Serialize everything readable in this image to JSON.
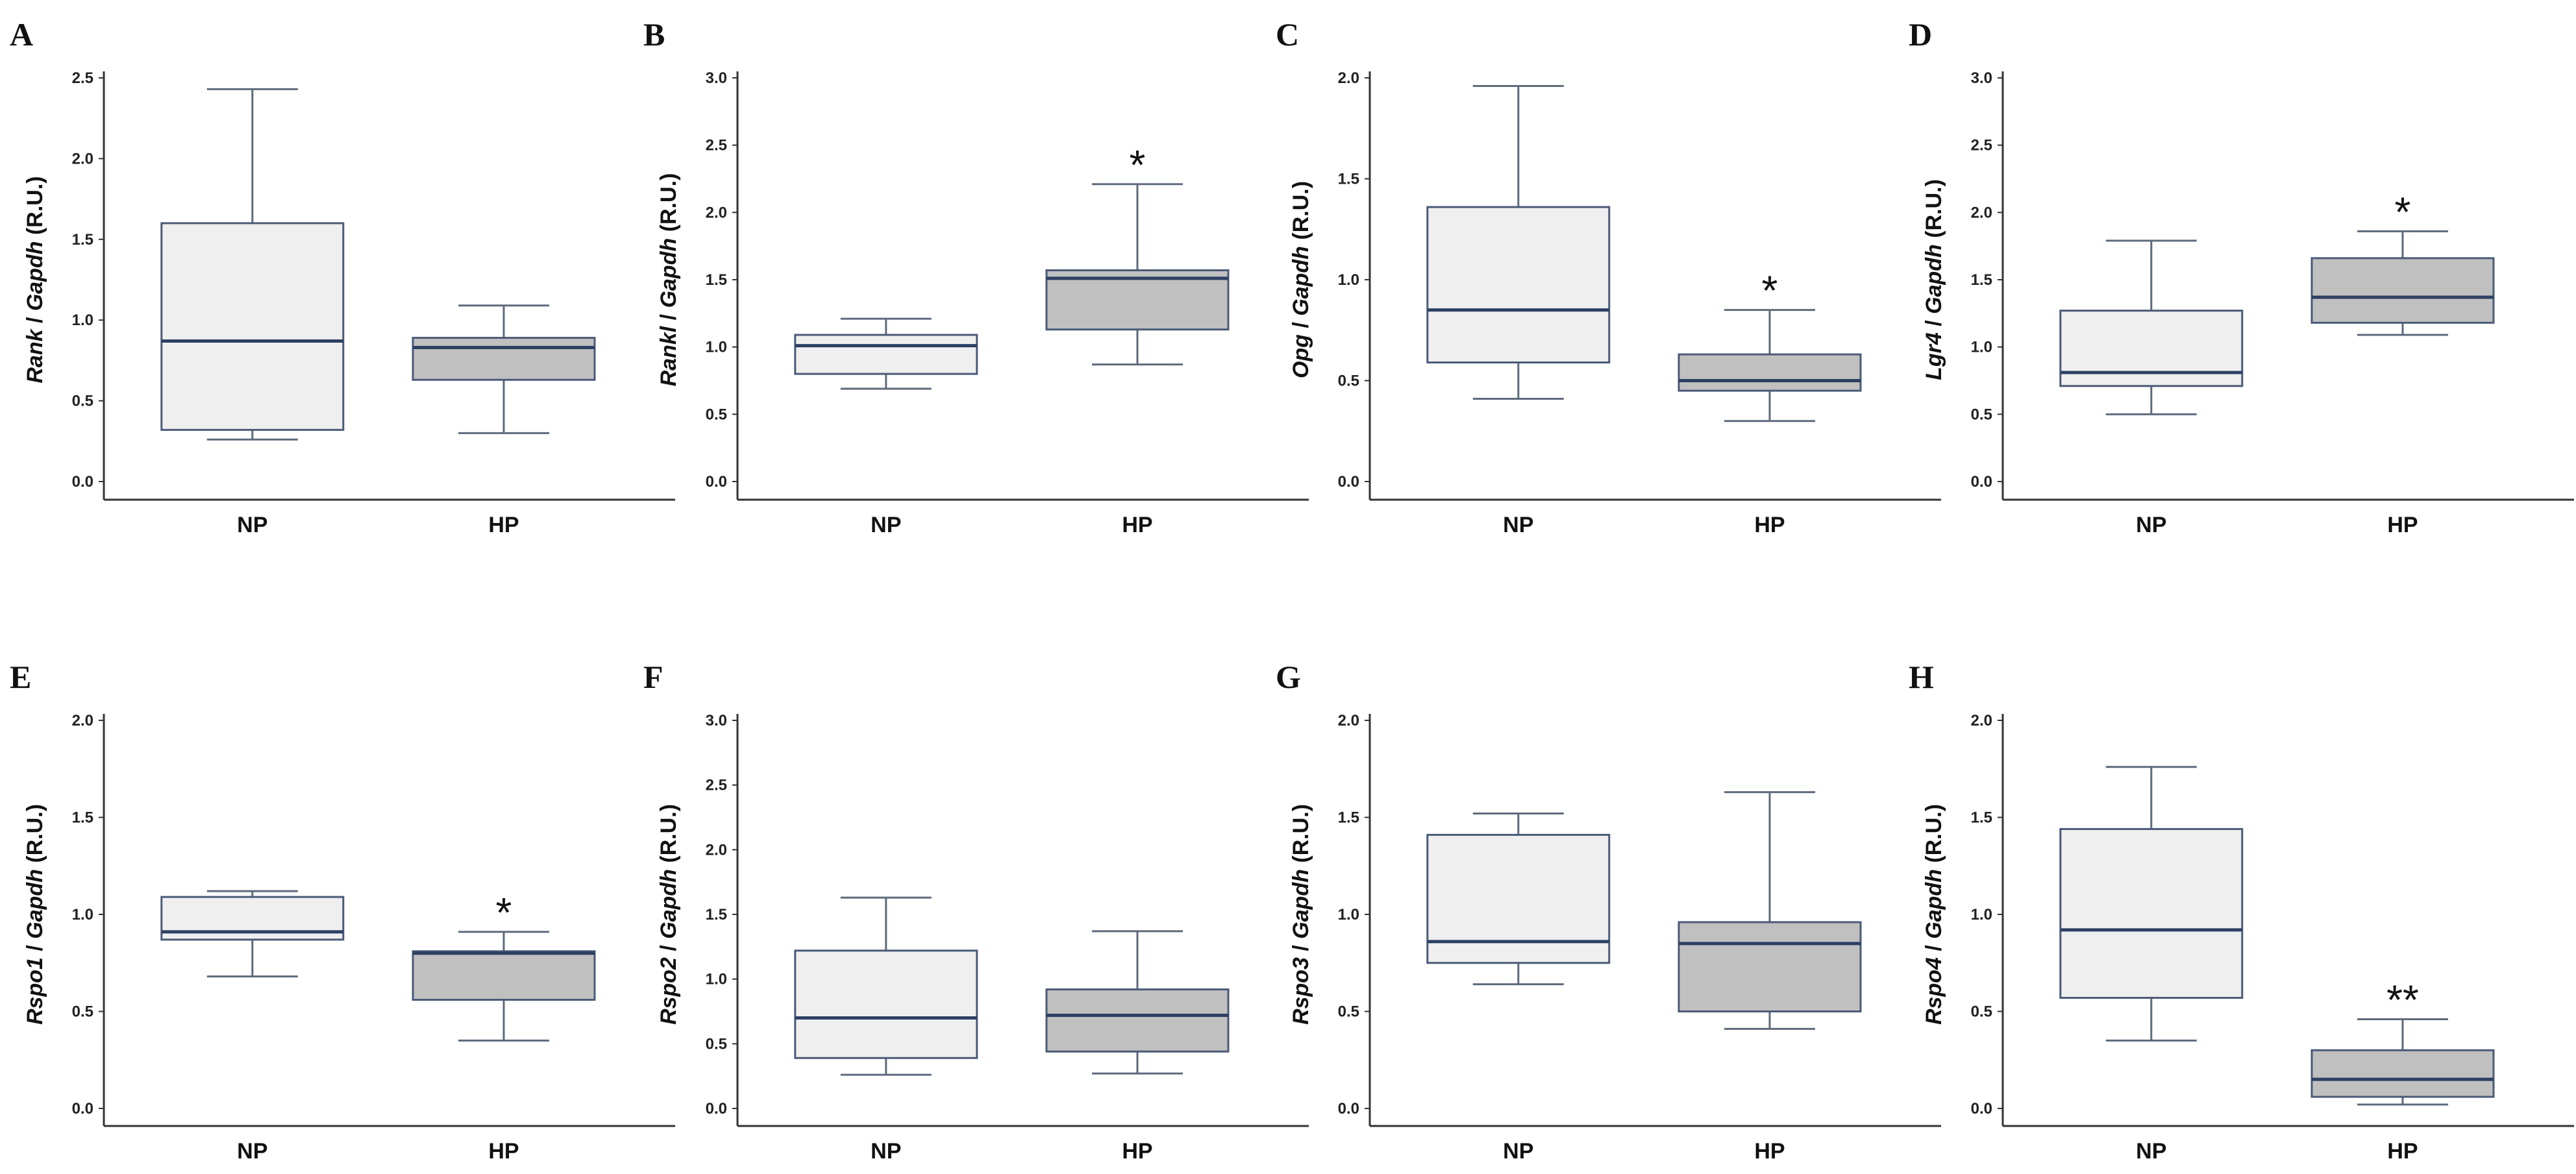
{
  "figure": {
    "colors": {
      "np_fill": "#efefef",
      "hp_fill": "#c0c0c0",
      "box_stroke": "#4a5a78",
      "median": "#2d3f63",
      "whisker": "#5e6a7c"
    },
    "ylabel_suffix": "(R.U.)"
  },
  "chart_data": [
    {
      "letter": "A",
      "type": "boxplot",
      "gene": "Rank",
      "ref": "Gapdh",
      "ylabel": "Rank / Gapdh (R.U.)",
      "ylim": [
        0,
        2.5
      ],
      "yticks": [
        "0.0",
        "0.5",
        "1.0",
        "1.5",
        "2.0",
        "2.5"
      ],
      "categories": [
        "NP",
        "HP"
      ],
      "boxes": [
        {
          "name": "NP",
          "whisker_low": 0.26,
          "q1": 0.32,
          "median": 0.87,
          "q3": 1.6,
          "whisker_high": 2.43,
          "sig": ""
        },
        {
          "name": "HP",
          "whisker_low": 0.3,
          "q1": 0.63,
          "median": 0.83,
          "q3": 0.89,
          "whisker_high": 1.09,
          "sig": ""
        }
      ]
    },
    {
      "letter": "B",
      "type": "boxplot",
      "gene": "Rankl",
      "ref": "Gapdh",
      "ylabel": "Rankl / Gapdh (R.U.)",
      "ylim": [
        0,
        3.0
      ],
      "yticks": [
        "0.0",
        "0.5",
        "1.0",
        "1.5",
        "2.0",
        "2.5",
        "3.0"
      ],
      "categories": [
        "NP",
        "HP"
      ],
      "boxes": [
        {
          "name": "NP",
          "whisker_low": 0.69,
          "q1": 0.8,
          "median": 1.01,
          "q3": 1.09,
          "whisker_high": 1.21,
          "sig": ""
        },
        {
          "name": "HP",
          "whisker_low": 0.87,
          "q1": 1.13,
          "median": 1.51,
          "q3": 1.57,
          "whisker_high": 2.21,
          "sig": "*"
        }
      ]
    },
    {
      "letter": "C",
      "type": "boxplot",
      "gene": "Opg",
      "ref": "Gapdh",
      "ylabel": "Opg / Gapdh (R.U.)",
      "ylim": [
        0,
        2.0
      ],
      "yticks": [
        "0.0",
        "0.5",
        "1.0",
        "1.5",
        "2.0"
      ],
      "categories": [
        "NP",
        "HP"
      ],
      "boxes": [
        {
          "name": "NP",
          "whisker_low": 0.41,
          "q1": 0.59,
          "median": 0.85,
          "q3": 1.36,
          "whisker_high": 1.96,
          "sig": ""
        },
        {
          "name": "HP",
          "whisker_low": 0.3,
          "q1": 0.45,
          "median": 0.5,
          "q3": 0.63,
          "whisker_high": 0.85,
          "sig": "*"
        }
      ]
    },
    {
      "letter": "D",
      "type": "boxplot",
      "gene": "Lgr4",
      "ref": "Gapdh",
      "ylabel": "Lgr4 / Gapdh (R.U.)",
      "ylim": [
        0,
        3.0
      ],
      "yticks": [
        "0.0",
        "0.5",
        "1.0",
        "1.5",
        "2.0",
        "2.5",
        "3.0"
      ],
      "categories": [
        "NP",
        "HP"
      ],
      "boxes": [
        {
          "name": "NP",
          "whisker_low": 0.5,
          "q1": 0.71,
          "median": 0.81,
          "q3": 1.27,
          "whisker_high": 1.79,
          "sig": ""
        },
        {
          "name": "HP",
          "whisker_low": 1.09,
          "q1": 1.18,
          "median": 1.37,
          "q3": 1.66,
          "whisker_high": 1.86,
          "sig": "*"
        }
      ]
    },
    {
      "letter": "E",
      "type": "boxplot",
      "gene": "Rspo1",
      "ref": "Gapdh",
      "ylabel": "Rspo1 / Gapdh (R.U.)",
      "ylim": [
        0,
        2.0
      ],
      "yticks": [
        "0.0",
        "0.5",
        "1.0",
        "1.5",
        "2.0"
      ],
      "categories": [
        "NP",
        "HP"
      ],
      "boxes": [
        {
          "name": "NP",
          "whisker_low": 0.68,
          "q1": 0.87,
          "median": 0.91,
          "q3": 1.09,
          "whisker_high": 1.12,
          "sig": ""
        },
        {
          "name": "HP",
          "whisker_low": 0.35,
          "q1": 0.56,
          "median": 0.8,
          "q3": 0.81,
          "whisker_high": 0.91,
          "sig": "*"
        }
      ]
    },
    {
      "letter": "F",
      "type": "boxplot",
      "gene": "Rspo2",
      "ref": "Gapdh",
      "ylabel": "Rspo2 / Gapdh (R.U.)",
      "ylim": [
        0,
        3.0
      ],
      "yticks": [
        "0.0",
        "0.5",
        "1.0",
        "1.5",
        "2.0",
        "2.5",
        "3.0"
      ],
      "categories": [
        "NP",
        "HP"
      ],
      "boxes": [
        {
          "name": "NP",
          "whisker_low": 0.26,
          "q1": 0.39,
          "median": 0.7,
          "q3": 1.22,
          "whisker_high": 1.63,
          "sig": ""
        },
        {
          "name": "HP",
          "whisker_low": 0.27,
          "q1": 0.44,
          "median": 0.72,
          "q3": 0.92,
          "whisker_high": 1.37,
          "sig": ""
        }
      ]
    },
    {
      "letter": "G",
      "type": "boxplot",
      "gene": "Rspo3",
      "ref": "Gapdh",
      "ylabel": "Rspo3 / Gapdh (R.U.)",
      "ylim": [
        0,
        2.0
      ],
      "yticks": [
        "0.0",
        "0.5",
        "1.0",
        "1.5",
        "2.0"
      ],
      "categories": [
        "NP",
        "HP"
      ],
      "boxes": [
        {
          "name": "NP",
          "whisker_low": 0.64,
          "q1": 0.75,
          "median": 0.86,
          "q3": 1.41,
          "whisker_high": 1.52,
          "sig": ""
        },
        {
          "name": "HP",
          "whisker_low": 0.41,
          "q1": 0.5,
          "median": 0.85,
          "q3": 0.96,
          "whisker_high": 1.63,
          "sig": ""
        }
      ]
    },
    {
      "letter": "H",
      "type": "boxplot",
      "gene": "Rspo4",
      "ref": "Gapdh",
      "ylabel": "Rspo4 / Gapdh (R.U.)",
      "ylim": [
        0,
        2.0
      ],
      "yticks": [
        "0.0",
        "0.5",
        "1.0",
        "1.5",
        "2.0"
      ],
      "categories": [
        "NP",
        "HP"
      ],
      "boxes": [
        {
          "name": "NP",
          "whisker_low": 0.35,
          "q1": 0.57,
          "median": 0.92,
          "q3": 1.44,
          "whisker_high": 1.76,
          "sig": ""
        },
        {
          "name": "HP",
          "whisker_low": 0.02,
          "q1": 0.06,
          "median": 0.15,
          "q3": 0.3,
          "whisker_high": 0.46,
          "sig": "**"
        }
      ]
    }
  ]
}
